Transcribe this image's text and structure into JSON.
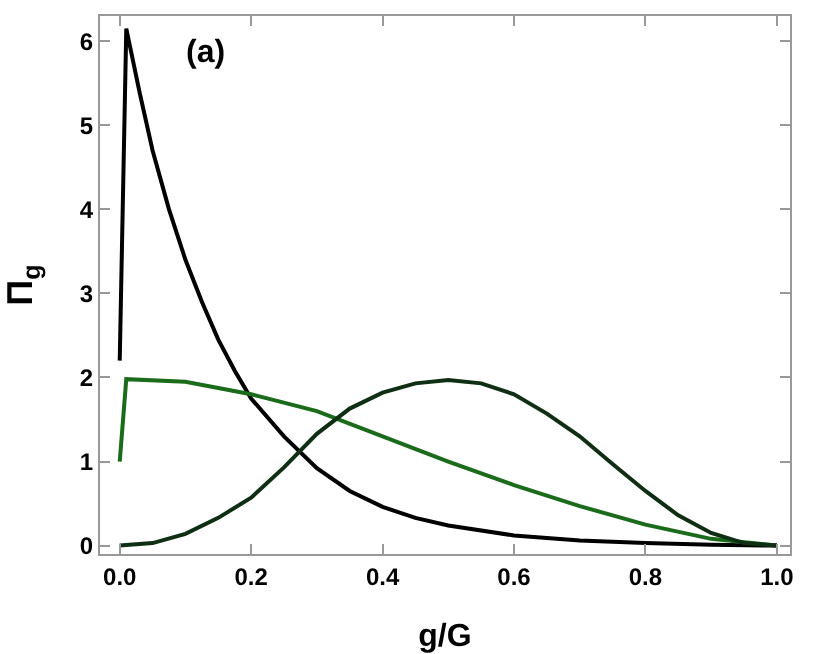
{
  "chart_data": {
    "type": "line",
    "xlabel": "g/G",
    "ylabel": "Π$_{g}$",
    "annotations": [
      "(a)"
    ],
    "xlim": [
      -0.03,
      1.02
    ],
    "ylim": [
      -0.1,
      6.3
    ],
    "xticks": [
      {
        "value": 0,
        "label": "0.0"
      },
      0.2,
      0.4,
      0.6,
      0.8,
      {
        "value": 1,
        "label": "1.0"
      }
    ],
    "yticks": [
      0,
      1,
      2,
      3,
      4,
      5,
      6
    ],
    "marker": "none",
    "line_style": "solid",
    "series": [
      {
        "color": "#000000",
        "x": [
          0,
          0.01,
          0.03,
          0.05,
          0.075,
          0.1,
          0.125,
          0.15,
          0.175,
          0.2,
          0.25,
          0.3,
          0.35,
          0.4,
          0.45,
          0.5,
          0.6,
          0.7,
          0.8,
          0.9,
          1.0
        ],
        "values": [
          2.2,
          6.15,
          5.4,
          4.7,
          4.0,
          3.4,
          2.9,
          2.45,
          2.08,
          1.75,
          1.3,
          0.92,
          0.65,
          0.46,
          0.33,
          0.24,
          0.12,
          0.06,
          0.03,
          0.01,
          0
        ]
      },
      {
        "color": "#1a6b1a",
        "x": [
          0,
          0.01,
          0.1,
          0.2,
          0.3,
          0.4,
          0.5,
          0.6,
          0.7,
          0.8,
          0.9,
          1.0
        ],
        "values": [
          1.0,
          1.98,
          1.95,
          1.8,
          1.6,
          1.3,
          1.0,
          0.72,
          0.47,
          0.25,
          0.08,
          0
        ]
      },
      {
        "color": "#0f2e14",
        "x": [
          0,
          0.05,
          0.1,
          0.15,
          0.2,
          0.25,
          0.3,
          0.35,
          0.4,
          0.45,
          0.5,
          0.55,
          0.6,
          0.65,
          0.7,
          0.75,
          0.8,
          0.85,
          0.9,
          0.95,
          1.0
        ],
        "values": [
          0,
          0.03,
          0.14,
          0.33,
          0.57,
          0.93,
          1.33,
          1.63,
          1.82,
          1.93,
          1.97,
          1.93,
          1.8,
          1.57,
          1.3,
          0.97,
          0.65,
          0.36,
          0.15,
          0.03,
          0
        ]
      }
    ]
  }
}
